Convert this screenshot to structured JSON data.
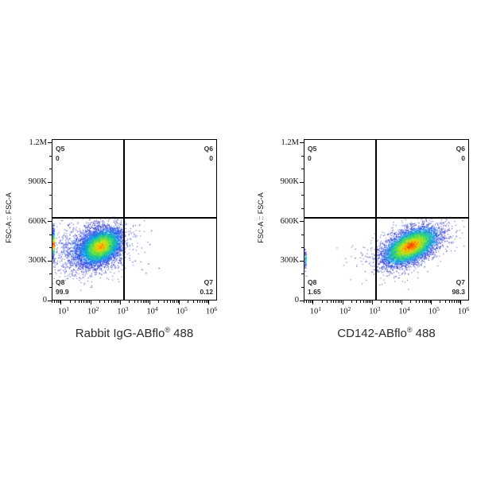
{
  "figure": {
    "background_color": "#ffffff",
    "panels": [
      {
        "name": "isotype-control",
        "y_axis_label": "FSC-A :: FSC-A",
        "x_axis": {
          "label_pre": "Rabbit IgG-ABflo",
          "label_reg": "®",
          "label_post": " 488"
        },
        "quadrants": {
          "q5": {
            "name": "Q5",
            "value": "0"
          },
          "q6": {
            "name": "Q6",
            "value": "0"
          },
          "q7": {
            "name": "Q7",
            "value": "0.12"
          },
          "q8": {
            "name": "Q8",
            "value": "99.9"
          }
        }
      },
      {
        "name": "cd142-stained",
        "y_axis_label": "FSC-A :: FSC-A",
        "x_axis": {
          "label_pre": "CD142-ABflo",
          "label_reg": "®",
          "label_post": " 488"
        },
        "quadrants": {
          "q5": {
            "name": "Q5",
            "value": "0"
          },
          "q6": {
            "name": "Q6",
            "value": "0"
          },
          "q7": {
            "name": "Q7",
            "value": "98.3"
          },
          "q8": {
            "name": "Q8",
            "value": "1.65"
          }
        }
      }
    ]
  },
  "chart_data": [
    {
      "type": "scatter",
      "subtype": "flow-cytometry-pseudocolor-density",
      "title": "",
      "xlabel": "Rabbit IgG-ABflo® 488",
      "ylabel": "FSC-A :: FSC-A",
      "x_scale": "log",
      "x_range_log10": [
        0.68,
        6.27
      ],
      "y_range": [
        0,
        1230000
      ],
      "x_tick_base": "10",
      "x_tick_exponents": [
        1,
        2,
        3,
        4,
        5,
        6
      ],
      "y_tick_values": [
        0,
        300000,
        600000,
        900000,
        1200000
      ],
      "y_tick_labels": [
        "0",
        "300K",
        "600K",
        "900K",
        "1.2M"
      ],
      "grid": false,
      "gate": {
        "x_threshold_log10": 3.12,
        "y_threshold": 633000
      },
      "quadrant_stats": [
        {
          "name": "Q5",
          "region": "top-left",
          "percent": 0
        },
        {
          "name": "Q6",
          "region": "top-right",
          "percent": 0
        },
        {
          "name": "Q7",
          "region": "bottom-right",
          "percent": 0.12
        },
        {
          "name": "Q8",
          "region": "bottom-left",
          "percent": 99.9
        }
      ],
      "density_colormap": [
        "#ff2800",
        "#ff8200",
        "#ffdc00",
        "#aaeb28",
        "#3cd750",
        "#00cdb4",
        "#0096eb",
        "#2d5ff5",
        "#2832d7",
        "#1c20af"
      ],
      "populations": [
        {
          "name": "background-halo",
          "n": 2400,
          "center_x_log10": 2.1,
          "center_y": 400000,
          "sigma_x_log10": 0.72,
          "sigma_y": 100000,
          "correlation": 0.25,
          "color_offset": 0.55,
          "color_scale": 0.2,
          "jitter": 0.26,
          "dot_size": 1,
          "alpha": 0.9,
          "seed": 101,
          "clip_x_above": 3.12,
          "keep_above": 0.2
        },
        {
          "name": "main-negative-population",
          "n": 5200,
          "center_x_log10": 2.32,
          "center_y": 412000,
          "sigma_x_log10": 0.36,
          "sigma_y": 68000,
          "correlation": 0.35,
          "color_offset": 0.1,
          "color_scale": 0.34,
          "jitter": 0.24,
          "dot_size": 1,
          "alpha": 1,
          "seed": 102,
          "clip_x_above": 3.12,
          "keep_above": 0.25
        },
        {
          "name": "q7-sparse-events",
          "n": 26,
          "center_x_log10": 3.45,
          "center_y": 400000,
          "sigma_x_log10": 0.4,
          "sigma_y": 90000,
          "correlation": 0,
          "color_offset": 0.68,
          "color_scale": 0.12,
          "jitter": 0.3,
          "dot_size": 1.3,
          "alpha": 0.9,
          "seed": 103
        },
        {
          "name": "axis-edge-pileup",
          "kind": "edge",
          "n": 200,
          "center_y": 430000,
          "sigma_y": 60000,
          "color_offset": 0.02,
          "color_scale": 0.5,
          "jitter": 0.2,
          "dot_size": 1.2,
          "alpha": 1,
          "seed": 104
        }
      ]
    },
    {
      "type": "scatter",
      "subtype": "flow-cytometry-pseudocolor-density",
      "title": "",
      "xlabel": "CD142-ABflo® 488",
      "ylabel": "FSC-A :: FSC-A",
      "x_scale": "log",
      "x_range_log10": [
        0.68,
        6.27
      ],
      "y_range": [
        0,
        1230000
      ],
      "x_tick_base": "10",
      "x_tick_exponents": [
        1,
        2,
        3,
        4,
        5,
        6
      ],
      "y_tick_values": [
        0,
        300000,
        600000,
        900000,
        1200000
      ],
      "y_tick_labels": [
        "0",
        "300K",
        "600K",
        "900K",
        "1.2M"
      ],
      "grid": false,
      "gate": {
        "x_threshold_log10": 3.12,
        "y_threshold": 633000
      },
      "quadrant_stats": [
        {
          "name": "Q5",
          "region": "top-left",
          "percent": 0
        },
        {
          "name": "Q6",
          "region": "top-right",
          "percent": 0
        },
        {
          "name": "Q7",
          "region": "bottom-right",
          "percent": 98.3
        },
        {
          "name": "Q8",
          "region": "bottom-left",
          "percent": 1.65
        }
      ],
      "density_colormap": [
        "#ff2800",
        "#ff8200",
        "#ffdc00",
        "#aaeb28",
        "#3cd750",
        "#00cdb4",
        "#0096eb",
        "#2d5ff5",
        "#2832d7",
        "#1c20af"
      ],
      "populations": [
        {
          "name": "background-halo",
          "n": 2000,
          "center_x_log10": 4.25,
          "center_y": 408000,
          "sigma_x_log10": 0.6,
          "sigma_y": 92000,
          "correlation": 0.45,
          "color_offset": 0.55,
          "color_scale": 0.2,
          "jitter": 0.26,
          "dot_size": 1,
          "alpha": 0.9,
          "seed": 201,
          "clip_x_below": 3.12,
          "keep_below": 0.55
        },
        {
          "name": "main-positive-population",
          "n": 6200,
          "center_x_log10": 4.3,
          "center_y": 415000,
          "sigma_x_log10": 0.42,
          "sigma_y": 65000,
          "correlation": 0.55,
          "color_offset": 0.0,
          "color_scale": 0.34,
          "jitter": 0.26,
          "dot_size": 1,
          "alpha": 1,
          "seed": 202
        },
        {
          "name": "q8-sparse-events",
          "n": 38,
          "center_x_log10": 3.0,
          "center_y": 330000,
          "sigma_x_log10": 0.55,
          "sigma_y": 55000,
          "correlation": 0.1,
          "color_offset": 0.72,
          "color_scale": 0.1,
          "jitter": 0.25,
          "dot_size": 1.3,
          "alpha": 0.55,
          "seed": 203
        },
        {
          "name": "axis-edge-pileup",
          "kind": "edge",
          "n": 60,
          "center_y": 308000,
          "sigma_y": 42000,
          "color_offset": 0.5,
          "color_scale": 0.3,
          "jitter": 0.3,
          "dot_size": 1.2,
          "alpha": 0.95,
          "seed": 204
        }
      ]
    }
  ]
}
